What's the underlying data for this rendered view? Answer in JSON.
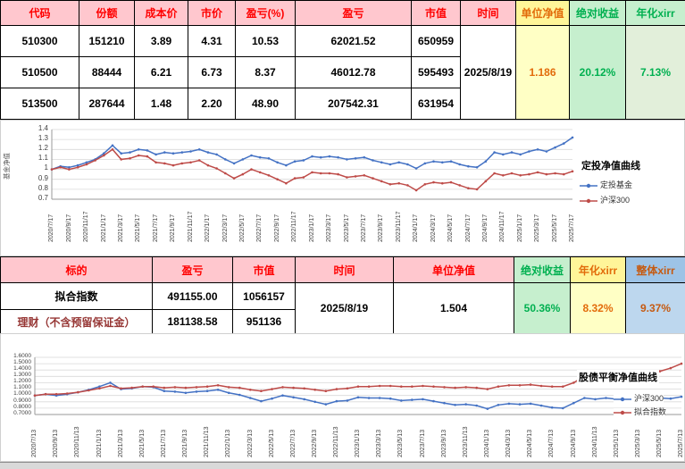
{
  "colors": {
    "header_pink_bg": "#FFC7CE",
    "header_pink_text": "#FF0000",
    "yellow_bg": "#FFF599",
    "yellow_light_bg": "#FFFFC5",
    "orange_text": "#E26B0A",
    "green_bg": "#C6EFCE",
    "green_light_bg": "#E2EFDA",
    "green_text": "#00B050",
    "blue_bg": "#9DC3E6",
    "blue_light_bg": "#BDD7EE",
    "blue_header_text": "#C55A11",
    "series_blue": "#4472C4",
    "series_red": "#BE4B48"
  },
  "holdings_table": {
    "headers": [
      "代码",
      "份额",
      "成本价",
      "市价",
      "盈亏(%)",
      "盈亏",
      "市值",
      "时间",
      "单位净值",
      "绝对收益",
      "年化xirr"
    ],
    "rows": [
      [
        "510300",
        "151210",
        "3.89",
        "4.31",
        "10.53",
        "62021.52",
        "650959"
      ],
      [
        "510500",
        "88444",
        "6.21",
        "6.73",
        "8.37",
        "46012.78",
        "595493"
      ],
      [
        "513500",
        "287644",
        "1.48",
        "2.20",
        "48.90",
        "207542.31",
        "631954"
      ]
    ],
    "merged": {
      "time": "2025/8/19",
      "unit_nav": "1.186",
      "abs_return": "20.12%",
      "annual_xirr": "7.13%"
    }
  },
  "summary_table": {
    "headers": [
      "标的",
      "盈亏",
      "市值",
      "时间",
      "单位净值",
      "绝对收益",
      "年化xirr",
      "整体xirr"
    ],
    "rows": [
      {
        "name": "拟合指数",
        "pnl": "491155.00",
        "market_value": "1056157"
      },
      {
        "name": "理财（不含预留保证金）",
        "pnl": "181138.58",
        "market_value": "951136"
      }
    ],
    "merged": {
      "time": "2025/8/19",
      "unit_nav": "1.504",
      "abs_return": "50.36%",
      "annual_xirr": "8.32%",
      "overall_xirr": "9.37%"
    }
  },
  "chart_data": [
    {
      "type": "line",
      "title": "定投净值曲线",
      "ylabel": "基金净值",
      "ylim": [
        0.7,
        1.4
      ],
      "yticks": [
        "1.4",
        "1.3",
        "1.2",
        "1.1",
        "1",
        "0.9",
        "0.8",
        "0.7"
      ],
      "grid": true,
      "legend_position": "right",
      "x_labels": [
        "2020/7/17",
        "2020/9/17",
        "2020/11/17",
        "2021/1/17",
        "2021/3/17",
        "2021/5/17",
        "2021/7/17",
        "2021/9/17",
        "2021/11/17",
        "2022/1/17",
        "2022/3/17",
        "2022/5/17",
        "2022/7/17",
        "2022/9/17",
        "2022/11/17",
        "2023/1/17",
        "2023/3/17",
        "2023/5/17",
        "2023/7/17",
        "2023/9/17",
        "2023/11/17",
        "2024/1/17",
        "2024/3/17",
        "2024/5/17",
        "2024/7/17",
        "2024/9/17",
        "2024/11/17",
        "2025/1/17",
        "2025/3/17",
        "2025/5/17",
        "2025/7/17"
      ],
      "series": [
        {
          "name": "定投基金",
          "color": "#4472C4",
          "values": [
            1.0,
            1.03,
            1.02,
            1.04,
            1.07,
            1.1,
            1.16,
            1.24,
            1.16,
            1.17,
            1.2,
            1.19,
            1.15,
            1.17,
            1.16,
            1.17,
            1.18,
            1.2,
            1.17,
            1.15,
            1.1,
            1.06,
            1.1,
            1.14,
            1.12,
            1.11,
            1.07,
            1.04,
            1.08,
            1.09,
            1.13,
            1.12,
            1.13,
            1.12,
            1.1,
            1.11,
            1.12,
            1.09,
            1.07,
            1.05,
            1.07,
            1.05,
            1.01,
            1.06,
            1.08,
            1.07,
            1.08,
            1.05,
            1.03,
            1.02,
            1.08,
            1.17,
            1.15,
            1.17,
            1.15,
            1.18,
            1.2,
            1.18,
            1.22,
            1.26,
            1.32
          ]
        },
        {
          "name": "沪深300",
          "color": "#BE4B48",
          "values": [
            1.0,
            1.02,
            1.0,
            1.02,
            1.05,
            1.09,
            1.14,
            1.2,
            1.1,
            1.11,
            1.14,
            1.13,
            1.07,
            1.06,
            1.04,
            1.06,
            1.07,
            1.09,
            1.04,
            1.01,
            0.96,
            0.91,
            0.95,
            1.0,
            0.97,
            0.94,
            0.9,
            0.86,
            0.91,
            0.92,
            0.97,
            0.96,
            0.96,
            0.95,
            0.92,
            0.93,
            0.94,
            0.91,
            0.88,
            0.85,
            0.86,
            0.84,
            0.79,
            0.85,
            0.87,
            0.86,
            0.87,
            0.84,
            0.81,
            0.8,
            0.88,
            0.96,
            0.94,
            0.96,
            0.94,
            0.95,
            0.97,
            0.95,
            0.96,
            0.95,
            0.98
          ]
        }
      ]
    },
    {
      "type": "line",
      "title": "股债平衡净值曲线",
      "ylabel": "",
      "ylim": [
        0.7,
        1.6
      ],
      "yticks": [
        "1.6000",
        "1.5000",
        "1.4000",
        "1.3000",
        "1.2000",
        "1.1000",
        "1.0000",
        "0.9000",
        "0.8000",
        "0.7000"
      ],
      "grid": true,
      "legend_position": "right",
      "x_labels": [
        "2020/7/13",
        "2020/9/13",
        "2020/11/13",
        "2021/1/13",
        "2021/3/13",
        "2021/5/13",
        "2021/7/13",
        "2021/9/13",
        "2021/11/13",
        "2022/1/13",
        "2022/3/13",
        "2022/5/13",
        "2022/7/13",
        "2022/9/13",
        "2022/11/13",
        "2023/1/13",
        "2023/3/13",
        "2023/5/13",
        "2023/7/13",
        "2023/9/13",
        "2023/11/13",
        "2024/1/13",
        "2024/3/13",
        "2024/5/13",
        "2024/7/13",
        "2024/9/13",
        "2024/11/13",
        "2025/1/13",
        "2025/3/13",
        "2025/5/13",
        "2025/7/13"
      ],
      "series": [
        {
          "name": "沪深300",
          "color": "#4472C4",
          "values": [
            1.0,
            1.02,
            1.0,
            1.02,
            1.05,
            1.09,
            1.14,
            1.2,
            1.1,
            1.11,
            1.14,
            1.13,
            1.07,
            1.06,
            1.04,
            1.06,
            1.07,
            1.09,
            1.04,
            1.01,
            0.96,
            0.91,
            0.95,
            1.0,
            0.97,
            0.94,
            0.9,
            0.86,
            0.91,
            0.92,
            0.97,
            0.96,
            0.96,
            0.95,
            0.92,
            0.93,
            0.94,
            0.91,
            0.88,
            0.85,
            0.86,
            0.84,
            0.79,
            0.85,
            0.87,
            0.86,
            0.87,
            0.84,
            0.81,
            0.8,
            0.88,
            0.96,
            0.94,
            0.96,
            0.94,
            0.95,
            0.97,
            0.95,
            0.96,
            0.95,
            0.98
          ]
        },
        {
          "name": "拟合指数",
          "color": "#BE4B48",
          "values": [
            1.0,
            1.02,
            1.02,
            1.03,
            1.05,
            1.08,
            1.11,
            1.15,
            1.11,
            1.12,
            1.14,
            1.14,
            1.12,
            1.13,
            1.12,
            1.13,
            1.14,
            1.16,
            1.13,
            1.12,
            1.09,
            1.07,
            1.1,
            1.13,
            1.12,
            1.11,
            1.09,
            1.07,
            1.1,
            1.11,
            1.14,
            1.14,
            1.15,
            1.15,
            1.14,
            1.14,
            1.15,
            1.14,
            1.13,
            1.12,
            1.13,
            1.12,
            1.1,
            1.14,
            1.16,
            1.16,
            1.17,
            1.15,
            1.14,
            1.14,
            1.2,
            1.3,
            1.29,
            1.31,
            1.3,
            1.33,
            1.36,
            1.35,
            1.38,
            1.43,
            1.5
          ]
        }
      ]
    }
  ]
}
